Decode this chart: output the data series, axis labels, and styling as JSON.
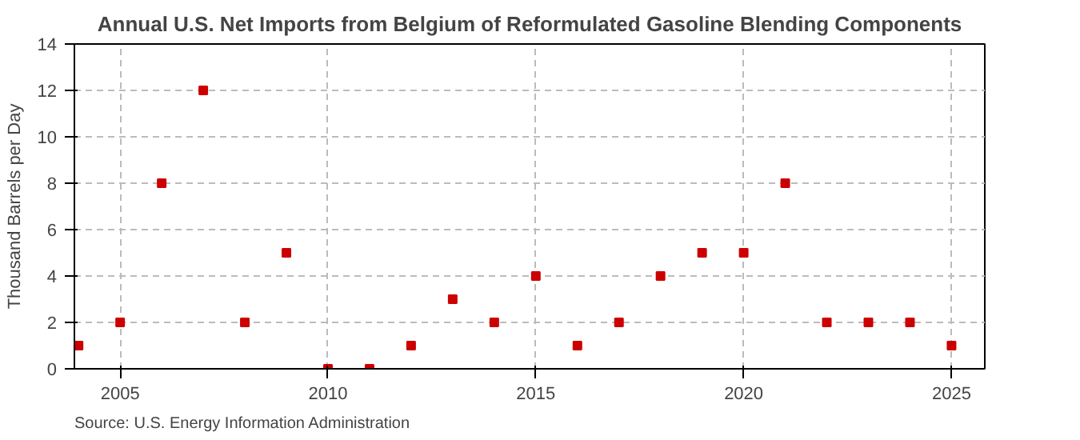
{
  "chart_data": {
    "type": "scatter",
    "title": "Annual U.S. Net Imports from Belgium of Reformulated Gasoline Blending Components",
    "ylabel": "Thousand Barrels per Day",
    "x": [
      2004,
      2005,
      2006,
      2007,
      2008,
      2009,
      2010,
      2011,
      2012,
      2013,
      2014,
      2015,
      2016,
      2017,
      2018,
      2019,
      2020,
      2021,
      2022,
      2023,
      2024,
      2025
    ],
    "series": [
      {
        "color": "#cc0000",
        "values": [
          1,
          2,
          8,
          12,
          2,
          5,
          0,
          0,
          1,
          3,
          2,
          4,
          1,
          2,
          4,
          5,
          5,
          8,
          2,
          2,
          2,
          1
        ]
      }
    ],
    "xlim": [
      2003.9,
      2025.8
    ],
    "xticks": [
      2005,
      2010,
      2015,
      2020,
      2025
    ],
    "ylim": [
      0,
      14
    ],
    "yticks": [
      0,
      2,
      4,
      6,
      8,
      10,
      12,
      14
    ],
    "grid": true,
    "marker": "square",
    "annotations": [
      "Source: U.S. Energy Information Administration"
    ]
  }
}
